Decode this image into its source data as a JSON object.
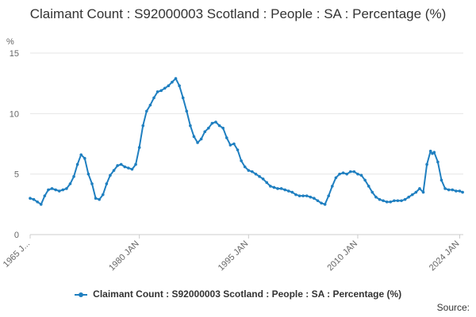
{
  "chart_data": {
    "type": "line",
    "title": "Claimant Count : S92000003 Scotland : People : SA : Percentage (%)",
    "ylabel": "%",
    "xlabel": "",
    "ylim": [
      0,
      15
    ],
    "y_ticks": [
      0,
      5,
      10,
      15
    ],
    "x_tick_labels": [
      "1965 J...",
      "1980 JAN",
      "1995 JAN",
      "2010 JAN",
      "2024 JAN"
    ],
    "x_tick_years": [
      1965,
      1980,
      1995,
      2010,
      2024
    ],
    "xlim": [
      1965,
      2024.5
    ],
    "grid": true,
    "legend_position": "bottom",
    "color": "#1f7fc0",
    "series": [
      {
        "name": "Claimant Count : S92000003 Scotland : People : SA : Percentage (%)",
        "x": [
          1965.0,
          1965.5,
          1966.0,
          1966.5,
          1967.0,
          1967.5,
          1968.0,
          1968.5,
          1969.0,
          1969.5,
          1970.0,
          1970.5,
          1971.0,
          1971.5,
          1972.0,
          1972.5,
          1973.0,
          1973.5,
          1974.0,
          1974.5,
          1975.0,
          1975.5,
          1976.0,
          1976.5,
          1977.0,
          1977.5,
          1978.0,
          1978.5,
          1979.0,
          1979.5,
          1980.0,
          1980.5,
          1981.0,
          1981.5,
          1982.0,
          1982.5,
          1983.0,
          1983.5,
          1984.0,
          1984.5,
          1985.0,
          1985.5,
          1986.0,
          1986.5,
          1987.0,
          1987.5,
          1988.0,
          1988.5,
          1989.0,
          1989.5,
          1990.0,
          1990.5,
          1991.0,
          1991.5,
          1992.0,
          1992.5,
          1993.0,
          1993.5,
          1994.0,
          1994.5,
          1995.0,
          1995.5,
          1996.0,
          1996.5,
          1997.0,
          1997.5,
          1998.0,
          1998.5,
          1999.0,
          1999.5,
          2000.0,
          2000.5,
          2001.0,
          2001.5,
          2002.0,
          2002.5,
          2003.0,
          2003.5,
          2004.0,
          2004.5,
          2005.0,
          2005.5,
          2006.0,
          2006.5,
          2007.0,
          2007.5,
          2008.0,
          2008.5,
          2009.0,
          2009.5,
          2010.0,
          2010.5,
          2011.0,
          2011.5,
          2012.0,
          2012.5,
          2013.0,
          2013.5,
          2014.0,
          2014.5,
          2015.0,
          2015.5,
          2016.0,
          2016.5,
          2017.0,
          2017.5,
          2018.0,
          2018.5,
          2019.0,
          2019.5,
          2020.0,
          2020.25,
          2020.5,
          2021.0,
          2021.5,
          2022.0,
          2022.5,
          2023.0,
          2023.5,
          2024.0,
          2024.4
        ],
        "y": [
          3.0,
          2.9,
          2.7,
          2.5,
          3.2,
          3.7,
          3.8,
          3.7,
          3.6,
          3.7,
          3.8,
          4.2,
          4.8,
          5.8,
          6.6,
          6.3,
          5.0,
          4.2,
          3.0,
          2.9,
          3.3,
          4.2,
          4.9,
          5.3,
          5.7,
          5.8,
          5.6,
          5.5,
          5.4,
          5.8,
          7.2,
          9.0,
          10.2,
          10.7,
          11.3,
          11.8,
          11.9,
          12.1,
          12.3,
          12.6,
          12.9,
          12.3,
          11.3,
          10.2,
          9.0,
          8.1,
          7.6,
          7.9,
          8.5,
          8.8,
          9.2,
          9.3,
          9.0,
          8.8,
          8.0,
          7.4,
          7.5,
          7.0,
          6.1,
          5.6,
          5.3,
          5.2,
          5.0,
          4.8,
          4.6,
          4.3,
          4.0,
          3.9,
          3.8,
          3.8,
          3.7,
          3.6,
          3.5,
          3.3,
          3.2,
          3.2,
          3.2,
          3.1,
          3.0,
          2.8,
          2.6,
          2.5,
          3.2,
          4.0,
          4.7,
          5.0,
          5.1,
          5.0,
          5.2,
          5.2,
          5.0,
          4.9,
          4.5,
          4.0,
          3.5,
          3.1,
          2.9,
          2.8,
          2.7,
          2.7,
          2.8,
          2.8,
          2.8,
          2.9,
          3.1,
          3.3,
          3.5,
          3.8,
          3.5,
          5.8,
          6.9,
          6.7,
          6.8,
          6.0,
          4.5,
          3.8,
          3.7,
          3.7,
          3.6,
          3.6,
          3.5
        ]
      }
    ]
  },
  "legend": {
    "label": "Claimant Count : S92000003 Scotland : People : SA : Percentage (%)"
  },
  "source": {
    "label": "Source:"
  }
}
